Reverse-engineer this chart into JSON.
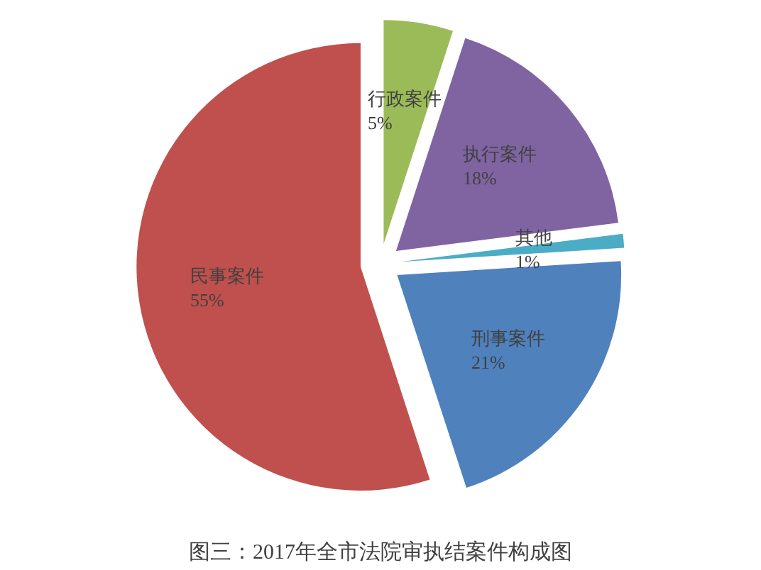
{
  "chart_data": {
    "type": "pie",
    "title": "图三：2017年全市法院审执结案件构成图",
    "categories": [
      "行政案件",
      "执行案件",
      "其他",
      "刑事案件",
      "民事案件"
    ],
    "values": [
      5,
      18,
      1,
      21,
      55
    ],
    "colors": [
      "#9bbb59",
      "#8064a2",
      "#4bacc6",
      "#4f81bd",
      "#c0504d"
    ],
    "value_labels": [
      "5%",
      "18%",
      "1%",
      "21%",
      "55%"
    ]
  }
}
